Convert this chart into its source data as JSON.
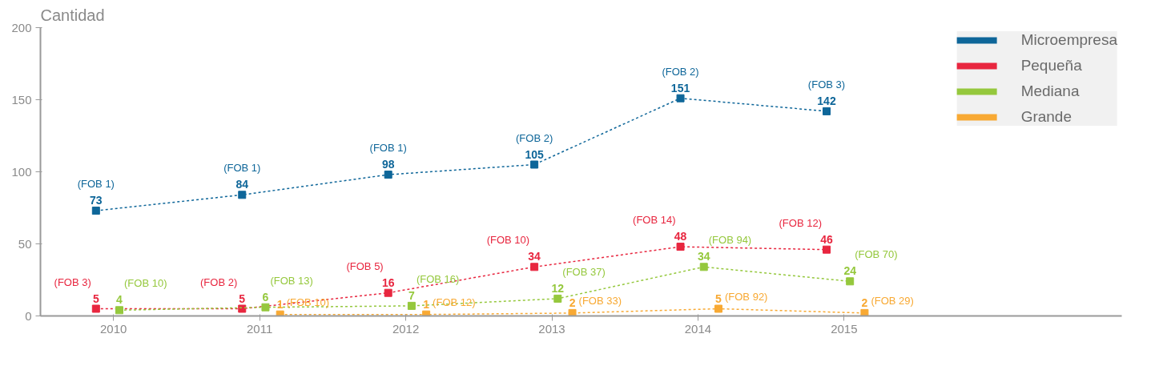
{
  "chart_data": {
    "type": "line",
    "ylabel": "Cantidad",
    "categories": [
      "2010",
      "2011",
      "2012",
      "2013",
      "2014",
      "2015"
    ],
    "series": [
      {
        "name": "Microempresa",
        "color": "#0e6699",
        "values": [
          73,
          84,
          98,
          105,
          151,
          142
        ]
      },
      {
        "name": "Pequeña",
        "color": "#e8263f",
        "values": [
          5,
          5,
          16,
          34,
          48,
          46
        ]
      },
      {
        "name": "Mediana",
        "color": "#95c83d",
        "values": [
          4,
          6,
          7,
          12,
          34,
          24
        ]
      },
      {
        "name": "Grande",
        "color": "#f8a933",
        "values": [
          null,
          1,
          1,
          2,
          5,
          2
        ]
      }
    ],
    "ylim": [
      0,
      200
    ],
    "yticks": [
      0,
      50,
      100,
      150,
      200
    ],
    "grid": false,
    "legend": "top right",
    "marker": "square",
    "line_style": "dashed",
    "data_labels": true,
    "annotations": [
      "(FOB 1)",
      "(FOB 1)",
      "(FOB 1)",
      "(FOB 2)",
      "(FOB 2)",
      "(FOB 3)",
      "(FOB 3)",
      "(FOB 2)",
      "(FOB 5)",
      "(FOB 10)",
      "(FOB 14)",
      "(FOB 12)",
      "(FOB 10)",
      "(FOB 13)",
      "(FOB 16)",
      "(FOB 37)",
      "(FOB 94)",
      "(FOB 70)",
      "(FOB 10)",
      "(FOB 12)",
      "(FOB 33)",
      "(FOB 92)",
      "(FOB 29)"
    ]
  }
}
